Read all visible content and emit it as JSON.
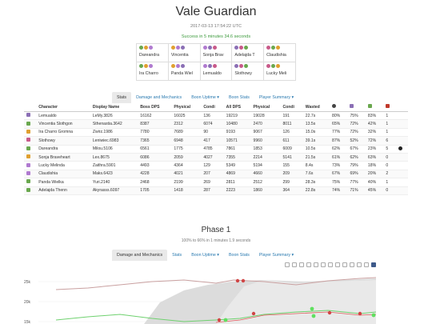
{
  "header": {
    "title": "Vale Guardian",
    "date": "2017-03-13 17:54:22 UTC",
    "result": "Success in 5 minutes 34.6 seconds"
  },
  "group": [
    [
      "Dareandra",
      "Vincentia",
      "Sonja Brav",
      "Adelajda T",
      "Claudishia"
    ],
    [
      "Ira Charro",
      "Panda Wiel",
      "Lemualdo",
      "Slothowy",
      "Lucky Meli"
    ]
  ],
  "tabs_top": [
    {
      "label": "Stats",
      "active": true
    },
    {
      "label": "Damage and Mechanics",
      "active": false
    },
    {
      "label": "Boon Uptime ▾",
      "active": false
    },
    {
      "label": "Boon Stats",
      "active": false
    },
    {
      "label": "Player Summary ▾",
      "active": false
    }
  ],
  "table": {
    "headers": [
      "Character",
      "Display Name",
      "Boss DPS",
      "Physical",
      "Condi",
      "All DPS",
      "Physical",
      "Condi",
      "Wasted"
    ],
    "icon_headers": [
      "swirl-icon",
      "purple-icon",
      "green-icon",
      "heart-icon"
    ],
    "rows": [
      {
        "prof": "#8b6fb5",
        "c": [
          "Lemualdo",
          "LeMy.3826",
          "16162",
          "16025",
          "136",
          "19219",
          "19028",
          "191",
          "22.7s",
          "80%",
          "75%",
          "83%",
          "1"
        ],
        "dead": false
      },
      {
        "prof": "#6aa84f",
        "c": [
          "Vincentia Slothgon",
          "Sthenastia.3642",
          "8387",
          "2312",
          "6074",
          "10480",
          "2470",
          "8011",
          "13.5s",
          "65%",
          "72%",
          "42%",
          "1"
        ],
        "dead": false
      },
      {
        "prof": "#e0a030",
        "c": [
          "Ira Charro Gromna",
          "Zwirz.1986",
          "7780",
          "7689",
          "90",
          "9193",
          "9067",
          "126",
          "15.0s",
          "77%",
          "72%",
          "32%",
          "1"
        ],
        "dead": false
      },
      {
        "prof": "#c95a8a",
        "c": [
          "Slothowy",
          "Leniwiec.6983",
          "7365",
          "6948",
          "417",
          "10571",
          "9960",
          "611",
          "39.1s",
          "87%",
          "52%",
          "72%",
          "6"
        ],
        "dead": false
      },
      {
        "prof": "#6aa84f",
        "c": [
          "Dareandra",
          "Milou.5106",
          "6561",
          "1775",
          "4785",
          "7861",
          "1853",
          "6009",
          "10.5s",
          "62%",
          "67%",
          "23%",
          "5"
        ],
        "dead": true
      },
      {
        "prof": "#e0a030",
        "c": [
          "Sonja Braveheart",
          "Lex.8675",
          "6086",
          "2059",
          "4027",
          "7355",
          "2214",
          "5141",
          "21.5s",
          "61%",
          "62%",
          "63%",
          "0"
        ],
        "dead": false
      },
      {
        "prof": "#b07ad0",
        "c": [
          "Lucky Melinda",
          "Zaithra.5901",
          "4493",
          "4364",
          "129",
          "5349",
          "5194",
          "155",
          "8.4s",
          "73%",
          "79%",
          "18%",
          "0"
        ],
        "dead": false
      },
      {
        "prof": "#b07ad0",
        "c": [
          "Claudishia",
          "Maks.6423",
          "4228",
          "4021",
          "207",
          "4869",
          "4660",
          "209",
          "7.6s",
          "67%",
          "69%",
          "20%",
          "2"
        ],
        "dead": false
      },
      {
        "prof": "#6aa84f",
        "c": [
          "Panda Wielka",
          "Yuri.2140",
          "2468",
          "2199",
          "269",
          "2811",
          "2512",
          "299",
          "28.3s",
          "75%",
          "77%",
          "40%",
          "1"
        ],
        "dead": false
      },
      {
        "prof": "#6aa84f",
        "c": [
          "Adelajda Thenn",
          "Akyrasss.6097",
          "1705",
          "1418",
          "287",
          "2223",
          "1860",
          "364",
          "22.8s",
          "74%",
          "71%",
          "45%",
          "0"
        ],
        "dead": false
      }
    ]
  },
  "phase": {
    "title": "Phase 1",
    "subtitle": "100% to 66% in 1 minutes 1.9 seconds"
  },
  "tabs_phase": [
    {
      "label": "Damage and Mechanics",
      "active": true
    },
    {
      "label": "Stats",
      "active": false
    },
    {
      "label": "Boon Uptime ▾",
      "active": false
    },
    {
      "label": "Boon Stats",
      "active": false
    },
    {
      "label": "Player Summary ▾",
      "active": false
    }
  ],
  "chart_data": {
    "type": "line",
    "y_ticks": [
      "25k",
      "20k",
      "15k"
    ],
    "ylim": [
      14000,
      27000
    ]
  }
}
